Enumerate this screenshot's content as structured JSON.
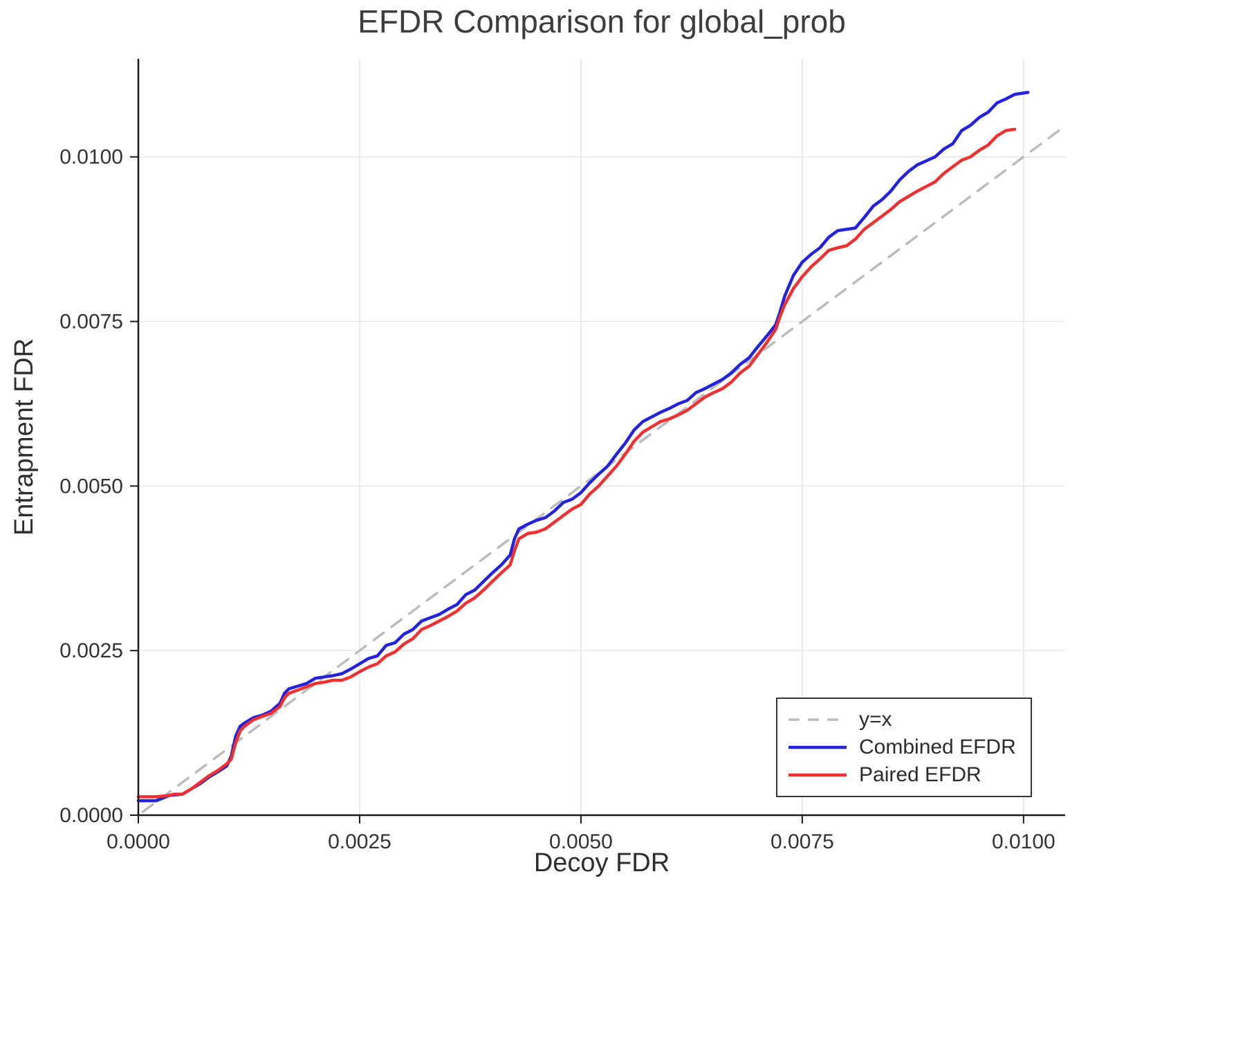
{
  "chart_data": {
    "type": "line",
    "title": "EFDR Comparison for global_prob",
    "xlabel": "Decoy FDR",
    "ylabel": "Entrapment FDR",
    "xlim": [
      0,
      0.01047
    ],
    "ylim": [
      0,
      0.01149
    ],
    "xticks": [
      "0.0000",
      "0.0025",
      "0.0050",
      "0.0075",
      "0.0100"
    ],
    "xtick_values": [
      0,
      0.0025,
      0.005,
      0.0075,
      0.01
    ],
    "yticks": [
      "0.0000",
      "0.0025",
      "0.0050",
      "0.0075",
      "0.0100"
    ],
    "ytick_values": [
      0,
      0.0025,
      0.005,
      0.0075,
      0.01
    ],
    "grid": true,
    "grid_color": "#e6e6e6",
    "axis_color": "#1a1a1a",
    "tick_color": "#333333",
    "legend_position": "bottom-right",
    "series": [
      {
        "name": "y=x",
        "data_name": "identity-line",
        "color": "#bbbbbb",
        "style": "dashed",
        "width": 3.5,
        "points": [
          [
            5e-05,
            5e-05
          ],
          [
            0.01045,
            0.01045
          ]
        ]
      },
      {
        "name": "Combined EFDR",
        "data_name": "combined-efdr-line",
        "color": "#2323dd",
        "style": "solid",
        "width": 4.5,
        "points": [
          [
            0.0,
            0.00022
          ],
          [
            0.0002,
            0.00022
          ],
          [
            0.00035,
            0.0003
          ],
          [
            0.0005,
            0.00032
          ],
          [
            0.0006,
            0.0004
          ],
          [
            0.0007,
            0.00048
          ],
          [
            0.0008,
            0.00058
          ],
          [
            0.0009,
            0.00066
          ],
          [
            0.001,
            0.00075
          ],
          [
            0.00105,
            0.0009
          ],
          [
            0.0011,
            0.0012
          ],
          [
            0.00115,
            0.00135
          ],
          [
            0.0012,
            0.0014
          ],
          [
            0.0013,
            0.00148
          ],
          [
            0.0014,
            0.00152
          ],
          [
            0.0015,
            0.00158
          ],
          [
            0.0016,
            0.0017
          ],
          [
            0.00165,
            0.00185
          ],
          [
            0.0017,
            0.00192
          ],
          [
            0.0018,
            0.00196
          ],
          [
            0.0019,
            0.002
          ],
          [
            0.002,
            0.00208
          ],
          [
            0.0021,
            0.0021
          ],
          [
            0.0022,
            0.00212
          ],
          [
            0.0023,
            0.00215
          ],
          [
            0.0024,
            0.00222
          ],
          [
            0.0025,
            0.0023
          ],
          [
            0.0026,
            0.00238
          ],
          [
            0.0027,
            0.00242
          ],
          [
            0.0028,
            0.00258
          ],
          [
            0.0029,
            0.00262
          ],
          [
            0.003,
            0.00275
          ],
          [
            0.0031,
            0.00282
          ],
          [
            0.0032,
            0.00295
          ],
          [
            0.0033,
            0.003
          ],
          [
            0.0034,
            0.00305
          ],
          [
            0.0035,
            0.00313
          ],
          [
            0.0036,
            0.0032
          ],
          [
            0.0037,
            0.00335
          ],
          [
            0.0038,
            0.00342
          ],
          [
            0.0039,
            0.00355
          ],
          [
            0.004,
            0.00368
          ],
          [
            0.0041,
            0.0038
          ],
          [
            0.0042,
            0.00395
          ],
          [
            0.00425,
            0.0042
          ],
          [
            0.0043,
            0.00435
          ],
          [
            0.0044,
            0.00442
          ],
          [
            0.0045,
            0.00448
          ],
          [
            0.0046,
            0.00452
          ],
          [
            0.0047,
            0.00462
          ],
          [
            0.0048,
            0.00475
          ],
          [
            0.0049,
            0.0048
          ],
          [
            0.005,
            0.0049
          ],
          [
            0.0051,
            0.00505
          ],
          [
            0.0052,
            0.00518
          ],
          [
            0.0053,
            0.0053
          ],
          [
            0.0054,
            0.00548
          ],
          [
            0.0055,
            0.00565
          ],
          [
            0.0056,
            0.00585
          ],
          [
            0.0057,
            0.00598
          ],
          [
            0.0058,
            0.00605
          ],
          [
            0.0059,
            0.00612
          ],
          [
            0.006,
            0.00618
          ],
          [
            0.0061,
            0.00625
          ],
          [
            0.0062,
            0.0063
          ],
          [
            0.0063,
            0.00642
          ],
          [
            0.0064,
            0.00648
          ],
          [
            0.0065,
            0.00655
          ],
          [
            0.0066,
            0.00662
          ],
          [
            0.0067,
            0.00672
          ],
          [
            0.0068,
            0.00685
          ],
          [
            0.0069,
            0.00695
          ],
          [
            0.007,
            0.00712
          ],
          [
            0.0071,
            0.00728
          ],
          [
            0.0072,
            0.00745
          ],
          [
            0.00725,
            0.00765
          ],
          [
            0.0073,
            0.00788
          ],
          [
            0.0074,
            0.0082
          ],
          [
            0.0075,
            0.0084
          ],
          [
            0.0076,
            0.00852
          ],
          [
            0.0077,
            0.00862
          ],
          [
            0.0078,
            0.00878
          ],
          [
            0.0079,
            0.00888
          ],
          [
            0.008,
            0.0089
          ],
          [
            0.0081,
            0.00892
          ],
          [
            0.0082,
            0.00908
          ],
          [
            0.0083,
            0.00925
          ],
          [
            0.0084,
            0.00935
          ],
          [
            0.0085,
            0.00948
          ],
          [
            0.0086,
            0.00965
          ],
          [
            0.0087,
            0.00978
          ],
          [
            0.0088,
            0.00988
          ],
          [
            0.0089,
            0.00994
          ],
          [
            0.009,
            0.01
          ],
          [
            0.0091,
            0.01012
          ],
          [
            0.0092,
            0.0102
          ],
          [
            0.0093,
            0.0104
          ],
          [
            0.0094,
            0.01048
          ],
          [
            0.0095,
            0.0106
          ],
          [
            0.0096,
            0.01068
          ],
          [
            0.0097,
            0.01082
          ],
          [
            0.0098,
            0.01088
          ],
          [
            0.0099,
            0.01095
          ],
          [
            0.01005,
            0.01098
          ]
        ]
      },
      {
        "name": "Paired EFDR",
        "data_name": "paired-efdr-line",
        "color": "#ee3030",
        "style": "solid",
        "width": 4.5,
        "points": [
          [
            0.0,
            0.00028
          ],
          [
            0.0002,
            0.00028
          ],
          [
            0.00035,
            0.0003
          ],
          [
            0.0004,
            0.00032
          ],
          [
            0.0005,
            0.00032
          ],
          [
            0.0006,
            0.0004
          ],
          [
            0.0007,
            0.0005
          ],
          [
            0.0008,
            0.0006
          ],
          [
            0.0009,
            0.00068
          ],
          [
            0.001,
            0.00078
          ],
          [
            0.00105,
            0.00085
          ],
          [
            0.0011,
            0.0011
          ],
          [
            0.00115,
            0.00128
          ],
          [
            0.0012,
            0.00135
          ],
          [
            0.0013,
            0.00145
          ],
          [
            0.0014,
            0.0015
          ],
          [
            0.0015,
            0.00155
          ],
          [
            0.0016,
            0.00165
          ],
          [
            0.00165,
            0.00178
          ],
          [
            0.0017,
            0.00185
          ],
          [
            0.0018,
            0.0019
          ],
          [
            0.0019,
            0.00195
          ],
          [
            0.002,
            0.002
          ],
          [
            0.0021,
            0.00202
          ],
          [
            0.0022,
            0.00205
          ],
          [
            0.0023,
            0.00205
          ],
          [
            0.0024,
            0.0021
          ],
          [
            0.0025,
            0.00218
          ],
          [
            0.0026,
            0.00225
          ],
          [
            0.0027,
            0.0023
          ],
          [
            0.0028,
            0.00242
          ],
          [
            0.0029,
            0.00248
          ],
          [
            0.003,
            0.0026
          ],
          [
            0.0031,
            0.00268
          ],
          [
            0.0032,
            0.00282
          ],
          [
            0.0033,
            0.00288
          ],
          [
            0.0034,
            0.00295
          ],
          [
            0.0035,
            0.00302
          ],
          [
            0.0036,
            0.0031
          ],
          [
            0.0037,
            0.00322
          ],
          [
            0.0038,
            0.0033
          ],
          [
            0.0039,
            0.00342
          ],
          [
            0.004,
            0.00355
          ],
          [
            0.0041,
            0.00368
          ],
          [
            0.0042,
            0.0038
          ],
          [
            0.00425,
            0.00402
          ],
          [
            0.0043,
            0.0042
          ],
          [
            0.0044,
            0.00428
          ],
          [
            0.0045,
            0.0043
          ],
          [
            0.0046,
            0.00435
          ],
          [
            0.0047,
            0.00445
          ],
          [
            0.0048,
            0.00455
          ],
          [
            0.0049,
            0.00465
          ],
          [
            0.005,
            0.00472
          ],
          [
            0.0051,
            0.00488
          ],
          [
            0.0052,
            0.005
          ],
          [
            0.0053,
            0.00515
          ],
          [
            0.0054,
            0.0053
          ],
          [
            0.0055,
            0.00548
          ],
          [
            0.0056,
            0.00568
          ],
          [
            0.0057,
            0.00582
          ],
          [
            0.0058,
            0.0059
          ],
          [
            0.0059,
            0.00598
          ],
          [
            0.006,
            0.00602
          ],
          [
            0.0061,
            0.00608
          ],
          [
            0.0062,
            0.00615
          ],
          [
            0.0063,
            0.00625
          ],
          [
            0.0064,
            0.00635
          ],
          [
            0.0065,
            0.00642
          ],
          [
            0.0066,
            0.00648
          ],
          [
            0.0067,
            0.00658
          ],
          [
            0.0068,
            0.00672
          ],
          [
            0.0069,
            0.00682
          ],
          [
            0.007,
            0.007
          ],
          [
            0.0071,
            0.00718
          ],
          [
            0.0072,
            0.00738
          ],
          [
            0.00725,
            0.00758
          ],
          [
            0.0073,
            0.00775
          ],
          [
            0.0074,
            0.008
          ],
          [
            0.0075,
            0.00818
          ],
          [
            0.0076,
            0.00833
          ],
          [
            0.0077,
            0.00845
          ],
          [
            0.0078,
            0.00858
          ],
          [
            0.0079,
            0.00862
          ],
          [
            0.008,
            0.00865
          ],
          [
            0.0081,
            0.00875
          ],
          [
            0.0082,
            0.0089
          ],
          [
            0.0083,
            0.009
          ],
          [
            0.0084,
            0.0091
          ],
          [
            0.0085,
            0.0092
          ],
          [
            0.0086,
            0.00932
          ],
          [
            0.0087,
            0.0094
          ],
          [
            0.0088,
            0.00948
          ],
          [
            0.0089,
            0.00955
          ],
          [
            0.009,
            0.00962
          ],
          [
            0.0091,
            0.00975
          ],
          [
            0.0092,
            0.00985
          ],
          [
            0.0093,
            0.00995
          ],
          [
            0.0094,
            0.01
          ],
          [
            0.0095,
            0.0101
          ],
          [
            0.0096,
            0.01018
          ],
          [
            0.0097,
            0.01032
          ],
          [
            0.0098,
            0.0104
          ],
          [
            0.0099,
            0.01042
          ]
        ]
      }
    ]
  }
}
